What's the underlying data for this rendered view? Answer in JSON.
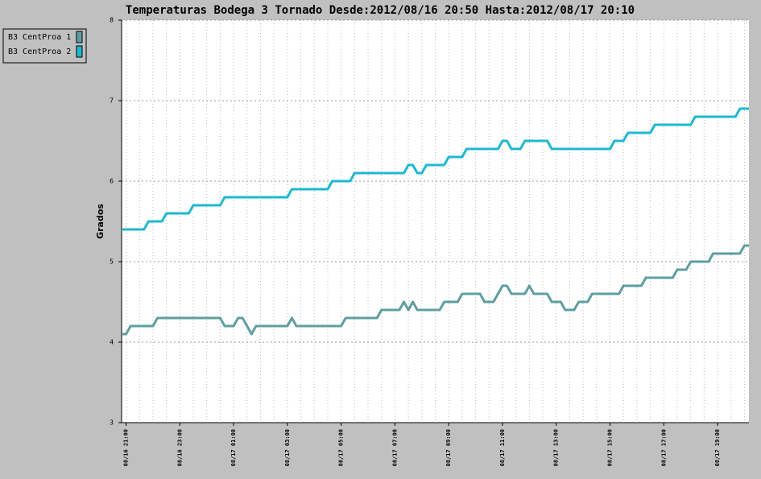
{
  "chart_data": {
    "type": "line",
    "title": "Temperaturas Bodega 3 Tornado Desde:2012/08/16 20:50 Hasta:2012/08/17 20:10",
    "ylabel": "Grados",
    "xlim": [
      "08/16 20:50",
      "08/17 20:10"
    ],
    "xticks": [
      "08/16 21:00",
      "08/16 23:00",
      "08/17 01:00",
      "08/17 03:00",
      "08/17 05:00",
      "08/17 07:00",
      "08/17 09:00",
      "08/17 11:00",
      "08/17 13:00",
      "08/17 15:00",
      "08/17 17:00",
      "08/17 19:00"
    ],
    "ylim": [
      3,
      8
    ],
    "yticks": [
      3,
      4,
      5,
      6,
      7,
      8
    ],
    "grid": true,
    "legend": "top-left",
    "series": [
      {
        "name": "B3 CentProa 1",
        "color": "#5f9ea0",
        "x": [
          "08/16 20:50",
          "08/16 21:00",
          "08/16 21:10",
          "08/16 22:00",
          "08/16 22:10",
          "08/17 00:30",
          "08/17 00:40",
          "08/17 01:00",
          "08/17 01:10",
          "08/17 01:20",
          "08/17 01:40",
          "08/17 01:50",
          "08/17 03:00",
          "08/17 03:10",
          "08/17 03:20",
          "08/17 05:00",
          "08/17 05:10",
          "08/17 06:20",
          "08/17 06:30",
          "08/17 07:10",
          "08/17 07:20",
          "08/17 07:30",
          "08/17 07:40",
          "08/17 07:50",
          "08/17 08:40",
          "08/17 08:50",
          "08/17 09:20",
          "08/17 09:30",
          "08/17 10:10",
          "08/17 10:20",
          "08/17 10:40",
          "08/17 11:00",
          "08/17 11:10",
          "08/17 11:20",
          "08/17 11:50",
          "08/17 12:00",
          "08/17 12:10",
          "08/17 12:40",
          "08/17 12:50",
          "08/17 13:10",
          "08/17 13:20",
          "08/17 13:40",
          "08/17 13:50",
          "08/17 14:10",
          "08/17 14:20",
          "08/17 15:20",
          "08/17 15:30",
          "08/17 16:10",
          "08/17 16:20",
          "08/17 17:20",
          "08/17 17:30",
          "08/17 17:50",
          "08/17 18:00",
          "08/17 18:40",
          "08/17 18:50",
          "08/17 19:50",
          "08/17 20:00",
          "08/17 20:10"
        ],
        "values": [
          4.1,
          4.1,
          4.2,
          4.2,
          4.3,
          4.3,
          4.2,
          4.2,
          4.3,
          4.3,
          4.1,
          4.2,
          4.2,
          4.3,
          4.2,
          4.2,
          4.3,
          4.3,
          4.4,
          4.4,
          4.5,
          4.4,
          4.5,
          4.4,
          4.4,
          4.5,
          4.5,
          4.6,
          4.6,
          4.5,
          4.5,
          4.7,
          4.7,
          4.6,
          4.6,
          4.7,
          4.6,
          4.6,
          4.5,
          4.5,
          4.4,
          4.4,
          4.5,
          4.5,
          4.6,
          4.6,
          4.7,
          4.7,
          4.8,
          4.8,
          4.9,
          4.9,
          5.0,
          5.0,
          5.1,
          5.1,
          5.2,
          5.2
        ]
      },
      {
        "name": "B3 CentProa 2",
        "color": "#1fb8cf",
        "x": [
          "08/16 20:50",
          "08/16 21:40",
          "08/16 21:50",
          "08/16 22:20",
          "08/16 22:30",
          "08/16 23:20",
          "08/16 23:30",
          "08/17 00:30",
          "08/17 00:40",
          "08/17 03:00",
          "08/17 03:10",
          "08/17 04:30",
          "08/17 04:40",
          "08/17 05:20",
          "08/17 05:30",
          "08/17 07:20",
          "08/17 07:30",
          "08/17 07:40",
          "08/17 07:50",
          "08/17 08:00",
          "08/17 08:10",
          "08/17 08:50",
          "08/17 09:00",
          "08/17 09:30",
          "08/17 09:40",
          "08/17 10:50",
          "08/17 11:00",
          "08/17 11:10",
          "08/17 11:20",
          "08/17 11:40",
          "08/17 11:50",
          "08/17 12:40",
          "08/17 12:50",
          "08/17 15:00",
          "08/17 15:10",
          "08/17 15:30",
          "08/17 15:40",
          "08/17 16:30",
          "08/17 16:40",
          "08/17 18:00",
          "08/17 18:10",
          "08/17 19:40",
          "08/17 19:50",
          "08/17 20:10"
        ],
        "values": [
          5.4,
          5.4,
          5.5,
          5.5,
          5.6,
          5.6,
          5.7,
          5.7,
          5.8,
          5.8,
          5.9,
          5.9,
          6.0,
          6.0,
          6.1,
          6.1,
          6.2,
          6.2,
          6.1,
          6.1,
          6.2,
          6.2,
          6.3,
          6.3,
          6.4,
          6.4,
          6.5,
          6.5,
          6.4,
          6.4,
          6.5,
          6.5,
          6.4,
          6.4,
          6.5,
          6.5,
          6.6,
          6.6,
          6.7,
          6.7,
          6.8,
          6.8,
          6.9,
          6.9
        ]
      }
    ]
  }
}
